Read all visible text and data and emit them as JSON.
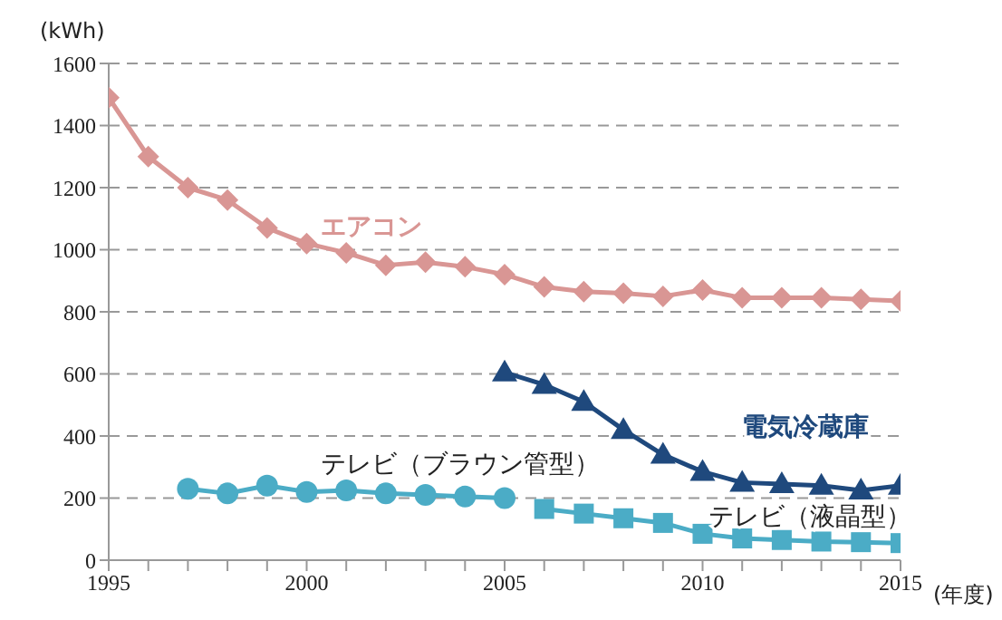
{
  "chart_data": {
    "type": "line",
    "ylabel": "(kWh)",
    "xlabel": "(年度)",
    "xlim": [
      1995,
      2015
    ],
    "xticks": [
      1995,
      {
        "value": 1996,
        "label": null
      },
      {
        "value": 1997,
        "label": null
      },
      {
        "value": 1998,
        "label": null
      },
      {
        "value": 1999,
        "label": null
      },
      2000,
      {
        "value": 2001,
        "label": null
      },
      {
        "value": 2002,
        "label": null
      },
      {
        "value": 2003,
        "label": null
      },
      {
        "value": 2004,
        "label": null
      },
      2005,
      {
        "value": 2006,
        "label": null
      },
      {
        "value": 2007,
        "label": null
      },
      {
        "value": 2008,
        "label": null
      },
      {
        "value": 2009,
        "label": null
      },
      2010,
      {
        "value": 2011,
        "label": null
      },
      {
        "value": 2012,
        "label": null
      },
      {
        "value": 2013,
        "label": null
      },
      {
        "value": 2014,
        "label": null
      },
      2015
    ],
    "ylim": [
      0,
      1600
    ],
    "yticks": [
      0,
      200,
      400,
      600,
      800,
      1000,
      1200,
      1400,
      1600
    ],
    "grid": "y",
    "line_style": "solid",
    "legend": false,
    "series": [
      {
        "name": "エアコン",
        "color": "#d99694",
        "marker": "diamond",
        "x": [
          1995,
          1996,
          1997,
          1998,
          1999,
          2000,
          2001,
          2002,
          2003,
          2004,
          2005,
          2006,
          2007,
          2008,
          2009,
          2010,
          2011,
          2012,
          2013,
          2014,
          2015
        ],
        "values": [
          1490,
          1300,
          1200,
          1160,
          1070,
          1020,
          990,
          950,
          960,
          945,
          920,
          880,
          865,
          860,
          850,
          870,
          845,
          845,
          845,
          840,
          835
        ]
      },
      {
        "name": "電気冷蔵庫",
        "color": "#1f497d",
        "marker": "triangle",
        "x": [
          2005,
          2006,
          2007,
          2008,
          2009,
          2010,
          2011,
          2012,
          2013,
          2014,
          2015
        ],
        "values": [
          605,
          565,
          510,
          420,
          340,
          285,
          250,
          245,
          240,
          225,
          240
        ]
      },
      {
        "name": "テレビ（ブラウン管型）",
        "color": "#4bacc6",
        "marker": "circle",
        "x": [
          1997,
          1998,
          1999,
          2000,
          2001,
          2002,
          2003,
          2004,
          2005
        ],
        "values": [
          230,
          215,
          240,
          220,
          225,
          215,
          210,
          205,
          200
        ]
      },
      {
        "name": "テレビ（液晶型）",
        "color": "#4bacc6",
        "marker": "square",
        "x": [
          2006,
          2007,
          2008,
          2009,
          2010,
          2011,
          2012,
          2013,
          2014,
          2015
        ],
        "values": [
          165,
          150,
          135,
          120,
          85,
          70,
          65,
          60,
          58,
          55
        ]
      }
    ]
  }
}
